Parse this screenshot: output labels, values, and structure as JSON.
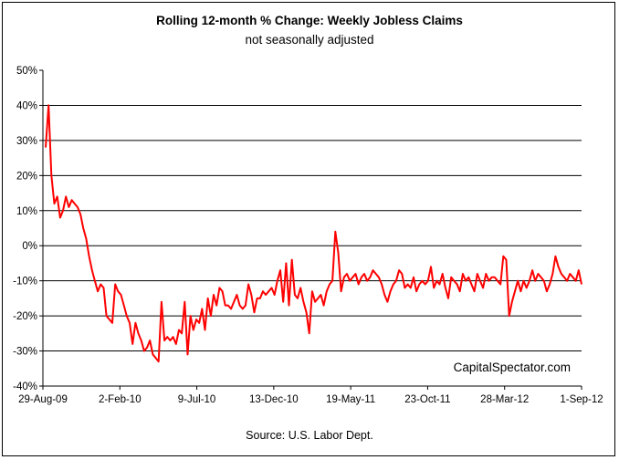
{
  "chart_data": {
    "type": "line",
    "title": "Rolling 12-month %  Change: Weekly Jobless Claims",
    "subtitle": "not seasonally adjusted",
    "source": "Source: U.S. Labor Dept.",
    "watermark": "CapitalSpectator.com",
    "xlabel": "",
    "ylabel": "",
    "ylim": [
      -40,
      50
    ],
    "y_ticks": [
      "50%",
      "40%",
      "30%",
      "20%",
      "10%",
      "0%",
      "-10%",
      "-20%",
      "-30%",
      "-40%"
    ],
    "x_ticks": [
      "29-Aug-09",
      "2-Feb-10",
      "9-Jul-10",
      "13-Dec-10",
      "19-May-11",
      "23-Oct-11",
      "28-Mar-12",
      "1-Sep-12"
    ],
    "grid": true,
    "line_color": "#ff0000",
    "series": [
      {
        "values": [
          28,
          40,
          20,
          12,
          14,
          8,
          10,
          14,
          11,
          13,
          12,
          11,
          9,
          5,
          2,
          -3,
          -7,
          -10,
          -13,
          -11,
          -12,
          -20,
          -21,
          -22,
          -11,
          -13,
          -14,
          -17,
          -20,
          -22,
          -28,
          -22,
          -25,
          -27,
          -30,
          -29,
          -27,
          -31,
          -32,
          -33,
          -16,
          -27,
          -26,
          -27,
          -26,
          -28,
          -24,
          -25,
          -16,
          -31,
          -20,
          -24,
          -21,
          -22,
          -18,
          -24,
          -15,
          -20,
          -14,
          -17,
          -12,
          -13,
          -17,
          -17,
          -18,
          -16,
          -14,
          -17,
          -18,
          -17,
          -11,
          -14,
          -19,
          -15,
          -15,
          -13,
          -14,
          -13,
          -12,
          -14,
          -10,
          -7,
          -16,
          -5,
          -17,
          -4,
          -14,
          -15,
          -12,
          -16,
          -19,
          -25,
          -13,
          -16,
          -15,
          -14,
          -17,
          -13,
          -11,
          -10,
          4,
          -2,
          -13,
          -9,
          -8,
          -10,
          -9,
          -8,
          -11,
          -9,
          -8,
          -10,
          -9,
          -7,
          -8,
          -9,
          -11,
          -14,
          -16,
          -13,
          -11,
          -10,
          -7,
          -8,
          -12,
          -11,
          -12,
          -9,
          -13,
          -11,
          -10,
          -11,
          -10,
          -6,
          -12,
          -10,
          -11,
          -8,
          -12,
          -15,
          -9,
          -10,
          -11,
          -13,
          -8,
          -10,
          -9,
          -11,
          -13,
          -8,
          -10,
          -12,
          -8,
          -10,
          -9,
          -9,
          -10,
          -11,
          -3,
          -4,
          -20,
          -16,
          -13,
          -10,
          -13,
          -10,
          -12,
          -10,
          -7,
          -10,
          -8,
          -9,
          -10,
          -13,
          -11,
          -8,
          -3,
          -6,
          -8,
          -9,
          -10,
          -8,
          -9,
          -10,
          -7,
          -11
        ]
      }
    ]
  }
}
